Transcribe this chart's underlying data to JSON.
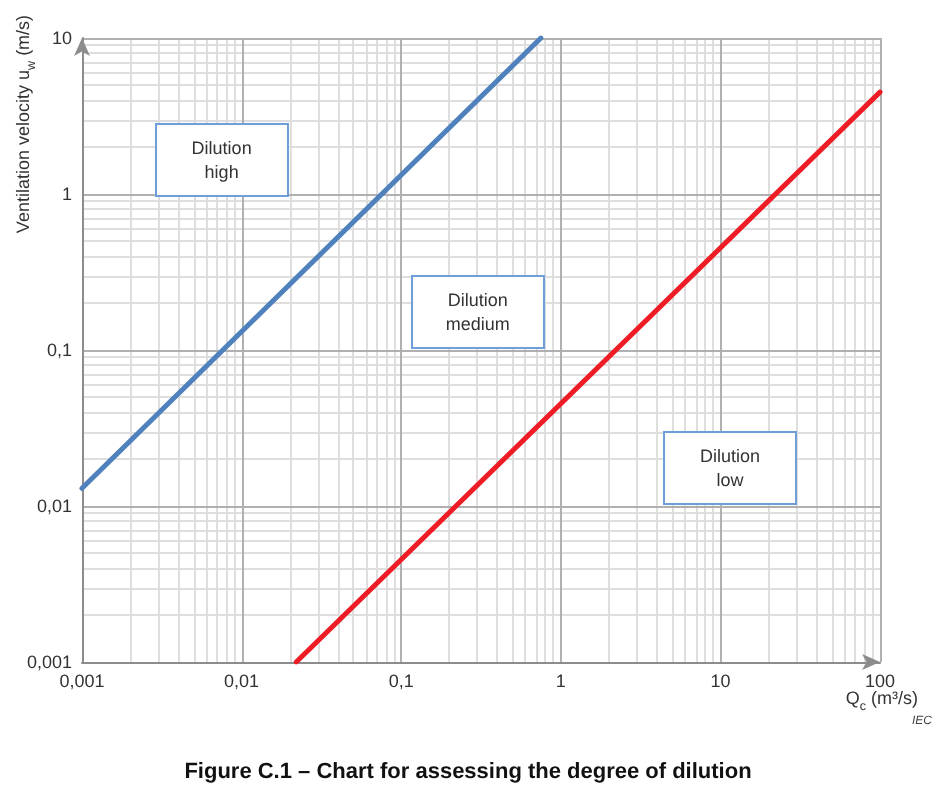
{
  "chart_data": {
    "type": "line",
    "title": "Figure C.1 – Chart for assessing the degree of dilution",
    "xlabel": "Q$_{c}$ (m³/s)",
    "ylabel": "Ventilation velocity u$_{w}$ (m/s)",
    "annotations": [
      "Dilution\nhigh",
      "Dilution\nmedium",
      "Dilution\nlow",
      "IEC"
    ],
    "series": [
      {
        "color": "#4f81bd",
        "x": [
          0.001,
          0.75
        ],
        "values": [
          0.013,
          10
        ]
      },
      {
        "color": "#ee1c25",
        "x": [
          0.022,
          100
        ],
        "values": [
          0.001,
          4.5
        ]
      }
    ],
    "xlim": [
      0.001,
      100
    ],
    "ylim": [
      0.001,
      10
    ],
    "xticks": [
      {
        "value": 0.001,
        "label": "0,001"
      },
      {
        "value": 0.01,
        "label": "0,01"
      },
      {
        "value": 0.1,
        "label": "0,1"
      },
      1,
      10,
      100
    ],
    "yticks": [
      {
        "value": 0.001,
        "label": "0,001"
      },
      {
        "value": 0.01,
        "label": "0,01"
      },
      {
        "value": 0.1,
        "label": "0,1"
      },
      1,
      10
    ],
    "log": "xy",
    "grid": true,
    "marker": "none"
  }
}
